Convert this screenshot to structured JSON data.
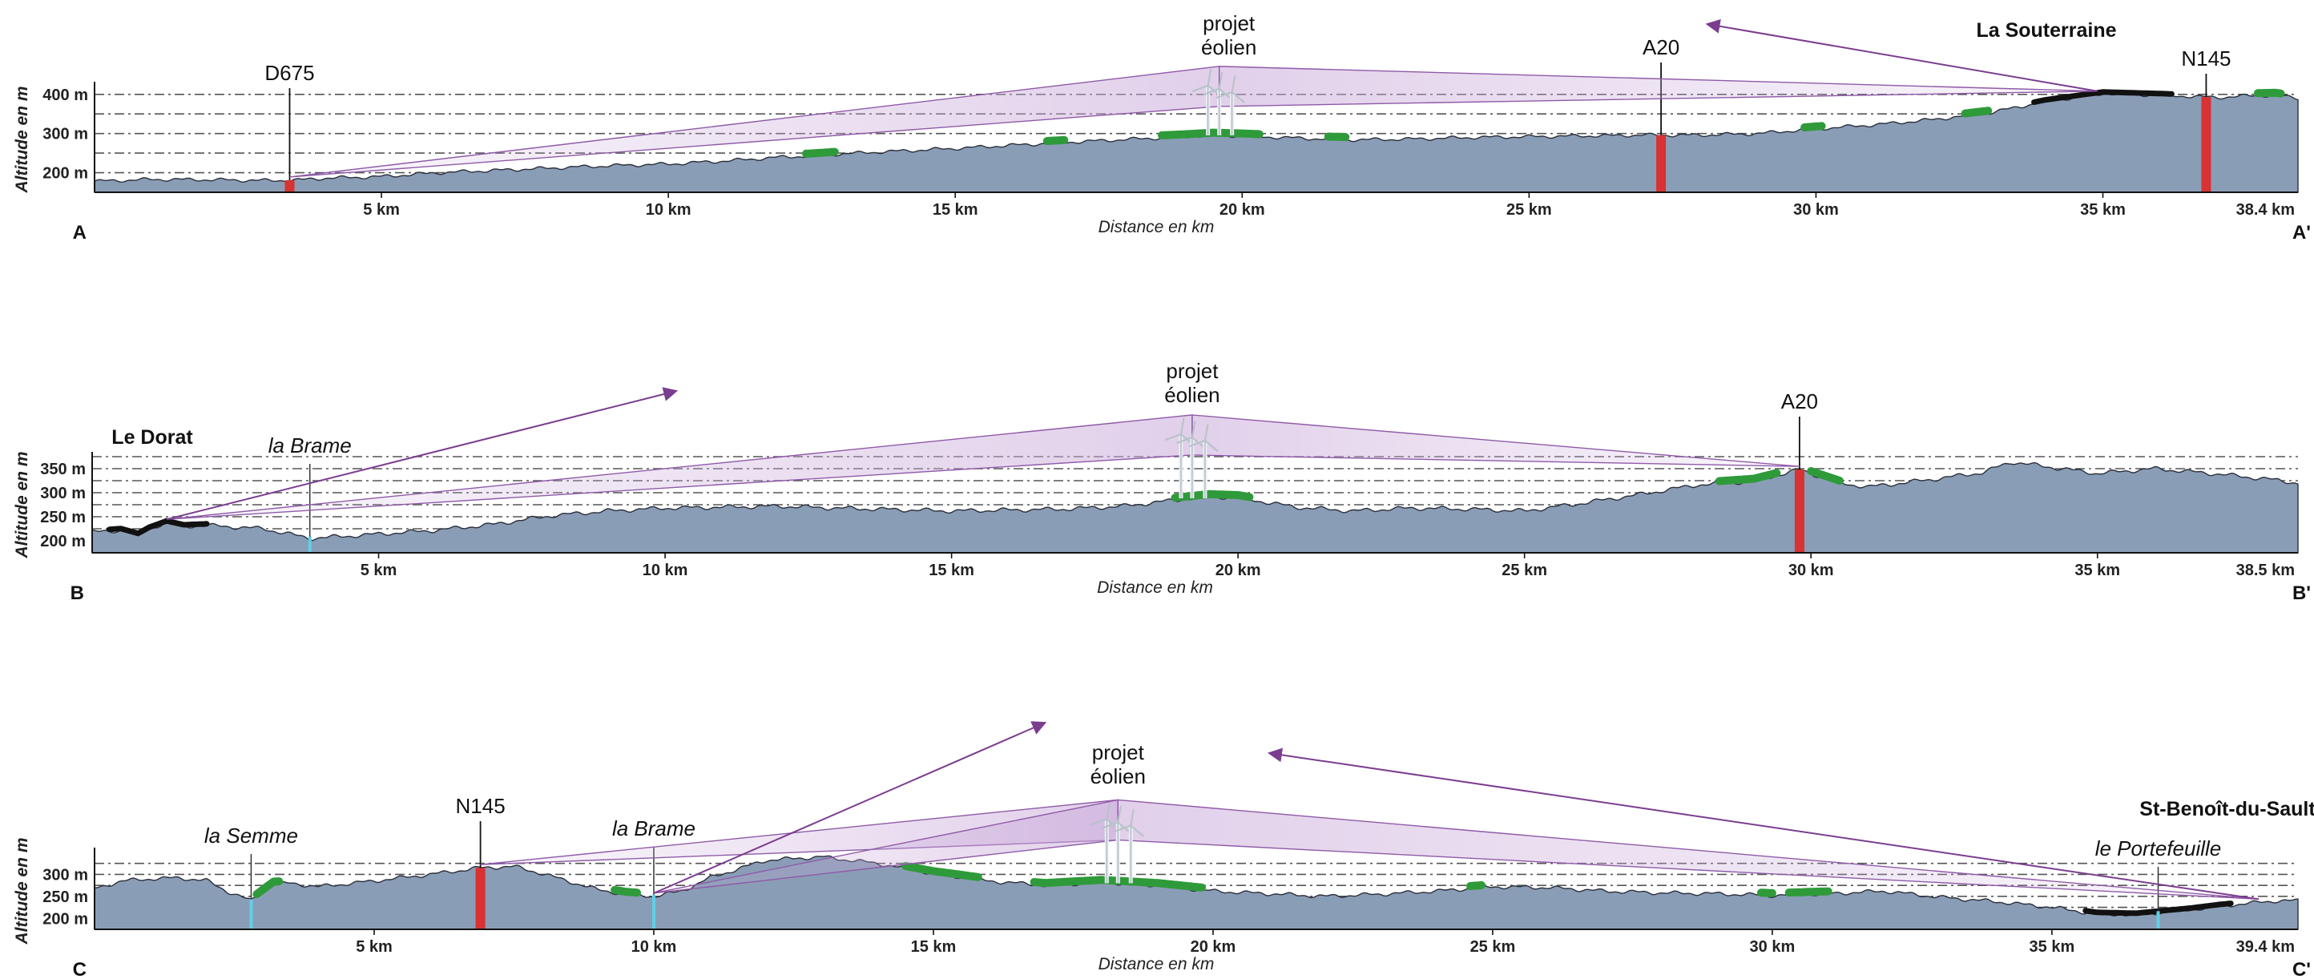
{
  "chart_data": [
    {
      "type": "area",
      "title": "",
      "xlabel": "Distance en km",
      "ylabel": "Altitude en m",
      "start_label": "A",
      "end_label": "A'",
      "x_end_label": "38.4 km",
      "xlim": [
        0,
        38.4
      ],
      "ylim": [
        150,
        420
      ],
      "xticks": [
        {
          "x": 5,
          "label": "5 km"
        },
        {
          "x": 10,
          "label": "10 km"
        },
        {
          "x": 15,
          "label": "15 km"
        },
        {
          "x": 20,
          "label": "20 km"
        },
        {
          "x": 25,
          "label": "25 km"
        },
        {
          "x": 30,
          "label": "30 km"
        },
        {
          "x": 35,
          "label": "35 km"
        }
      ],
      "yticks": [
        {
          "y": 200,
          "label": "200 m"
        },
        {
          "y": 300,
          "label": "300 m"
        },
        {
          "y": 400,
          "label": "400 m"
        }
      ],
      "gridlines": [
        200,
        250,
        300,
        350,
        400
      ],
      "elevation": {
        "x": [
          0,
          1,
          2,
          3,
          3.5,
          4,
          5,
          6,
          7,
          8,
          9,
          10,
          11,
          12,
          12.5,
          13,
          14,
          15,
          16,
          17,
          18,
          19,
          19.5,
          20,
          21,
          22,
          23,
          24,
          25,
          26,
          27,
          28,
          29,
          30,
          31,
          32,
          33,
          34,
          35,
          36,
          37,
          37.5,
          38,
          38.4
        ],
        "y": [
          178,
          183,
          182,
          180,
          181,
          186,
          190,
          200,
          206,
          212,
          218,
          222,
          230,
          240,
          243,
          248,
          255,
          262,
          270,
          278,
          285,
          292,
          296,
          294,
          288,
          284,
          286,
          290,
          292,
          294,
          296,
          296,
          300,
          312,
          322,
          335,
          352,
          382,
          402,
          398,
          392,
          396,
          398,
          390
        ]
      },
      "observer_km": 3.4,
      "turbine_km": 19.6,
      "roads": [
        {
          "name": "D675",
          "x": 3.4
        },
        {
          "name": "A20",
          "x": 27.3
        },
        {
          "name": "N145",
          "x": 36.8
        }
      ],
      "rivers": [],
      "places": [
        {
          "name": "La Souterraine",
          "x": 34.5,
          "align": "right-top"
        }
      ],
      "project_label": [
        "projet",
        "éolien"
      ],
      "forest_km": [
        [
          12.4,
          12.9
        ],
        [
          16.6,
          16.9
        ],
        [
          18.6,
          20.3
        ],
        [
          21.5,
          21.8
        ],
        [
          29.8,
          30.1
        ],
        [
          32.6,
          33.0
        ],
        [
          37.7,
          38.1
        ]
      ],
      "town_km": [
        [
          33.8,
          36.2
        ]
      ],
      "sightlines": [
        {
          "from_km": 3.4,
          "to_km": 19.6
        },
        {
          "from_km": 34.9,
          "to_km": 19.6
        }
      ],
      "arrow": {
        "from_km": 34.9,
        "to_km": 28.1
      }
    },
    {
      "type": "area",
      "title": "",
      "xlabel": "Distance en km",
      "ylabel": "Altitude en m",
      "start_label": "B",
      "end_label": "B'",
      "x_end_label": "38.5 km",
      "xlim": [
        0,
        38.5
      ],
      "ylim": [
        175,
        375
      ],
      "xticks": [
        {
          "x": 5,
          "label": "5 km"
        },
        {
          "x": 10,
          "label": "10 km"
        },
        {
          "x": 15,
          "label": "15 km"
        },
        {
          "x": 20,
          "label": "20 km"
        },
        {
          "x": 25,
          "label": "25 km"
        },
        {
          "x": 30,
          "label": "30 km"
        },
        {
          "x": 35,
          "label": "35 km"
        }
      ],
      "yticks": [
        {
          "y": 200,
          "label": "200 m"
        },
        {
          "y": 250,
          "label": "250 m"
        },
        {
          "y": 300,
          "label": "300 m"
        },
        {
          "y": 350,
          "label": "350 m"
        }
      ],
      "gridlines": [
        200,
        225,
        250,
        275,
        300,
        325,
        350,
        375
      ],
      "elevation": {
        "x": [
          0,
          0.5,
          0.8,
          1,
          1.3,
          1.6,
          2,
          3,
          3.8,
          4.5,
          5,
          6,
          7,
          8,
          9,
          10,
          11,
          12,
          13,
          14,
          15,
          16,
          17,
          18,
          19,
          19.5,
          20,
          21,
          22,
          23,
          24,
          25,
          26,
          27,
          28,
          29,
          29.8,
          30.5,
          31,
          32,
          33,
          33.5,
          34,
          35,
          36,
          37,
          38,
          38.5
        ],
        "y": [
          218,
          222,
          212,
          225,
          238,
          230,
          232,
          225,
          205,
          210,
          214,
          222,
          234,
          252,
          262,
          268,
          270,
          272,
          268,
          265,
          262,
          264,
          266,
          272,
          286,
          292,
          290,
          270,
          262,
          268,
          266,
          262,
          278,
          296,
          316,
          324,
          348,
          320,
          312,
          326,
          342,
          364,
          356,
          340,
          350,
          340,
          328,
          320
        ]
      },
      "observer_km": 1.3,
      "turbine_km": 19.2,
      "roads": [
        {
          "name": "A20",
          "x": 29.8
        }
      ],
      "rivers": [
        {
          "name": "la Brame",
          "x": 3.8
        }
      ],
      "places": [
        {
          "name": "Le Dorat",
          "x": 1.0,
          "align": "left-top"
        }
      ],
      "project_label": [
        "projet",
        "éolien"
      ],
      "forest_km": [
        [
          18.9,
          20.2
        ],
        [
          28.4,
          29.4
        ],
        [
          30.0,
          30.5
        ]
      ],
      "town_km": [
        [
          0.3,
          2.0
        ]
      ],
      "sightlines": [
        {
          "from_km": 1.3,
          "to_km": 19.2
        },
        {
          "from_km": 29.8,
          "to_km": 19.2
        }
      ],
      "arrow": {
        "from_km": 1.3,
        "to_km": 10.2
      }
    },
    {
      "type": "area",
      "title": "",
      "xlabel": "Distance en km",
      "ylabel": "Altitude en m",
      "start_label": "C",
      "end_label": "C'",
      "x_end_label": "39.4 km",
      "xlim": [
        0,
        39.4
      ],
      "ylim": [
        175,
        350
      ],
      "xticks": [
        {
          "x": 5,
          "label": "5 km"
        },
        {
          "x": 10,
          "label": "10 km"
        },
        {
          "x": 15,
          "label": "15 km"
        },
        {
          "x": 20,
          "label": "20 km"
        },
        {
          "x": 25,
          "label": "25 km"
        },
        {
          "x": 30,
          "label": "30 km"
        },
        {
          "x": 35,
          "label": "35 km"
        }
      ],
      "yticks": [
        {
          "y": 200,
          "label": "200 m"
        },
        {
          "y": 250,
          "label": "250 m"
        },
        {
          "y": 300,
          "label": "300 m"
        }
      ],
      "gridlines": [
        200,
        225,
        250,
        275,
        300,
        325
      ],
      "elevation": {
        "x": [
          0,
          0.5,
          1,
          1.5,
          2,
          2.4,
          2.8,
          3.2,
          3.5,
          4,
          5,
          6,
          6.9,
          7.5,
          8,
          9,
          9.5,
          10,
          10.5,
          11,
          12,
          13,
          14,
          15,
          16,
          17,
          18,
          19,
          20,
          21,
          22,
          23,
          24,
          25,
          26,
          27,
          28,
          29,
          30,
          31,
          32,
          33,
          34,
          35,
          35.8,
          36.5,
          37,
          37.5,
          38,
          39,
          39.4
        ],
        "y": [
          268,
          285,
          290,
          292,
          286,
          260,
          240,
          278,
          280,
          272,
          285,
          300,
          315,
          318,
          302,
          265,
          255,
          250,
          262,
          292,
          332,
          340,
          325,
          302,
          285,
          275,
          282,
          275,
          262,
          256,
          250,
          255,
          262,
          272,
          270,
          262,
          258,
          256,
          252,
          256,
          262,
          248,
          238,
          225,
          210,
          208,
          214,
          220,
          228,
          240,
          240
        ]
      },
      "observer_km": 6.9,
      "turbine_km": 18.3,
      "roads": [
        {
          "name": "N145",
          "x": 6.9
        }
      ],
      "rivers": [
        {
          "name": "la Semme",
          "x": 2.8
        },
        {
          "name": "la Brame",
          "x": 10.0
        },
        {
          "name": "le Portefeuille",
          "x": 36.9
        }
      ],
      "places": [
        {
          "name": "St-Benoît-du-Sault",
          "x": 38.7,
          "align": "right-top"
        }
      ],
      "project_label": [
        "projet",
        "éolien"
      ],
      "forest_km": [
        [
          2.9,
          3.3
        ],
        [
          9.3,
          9.7
        ],
        [
          14.5,
          15.8
        ],
        [
          16.8,
          19.8
        ],
        [
          24.6,
          24.8
        ],
        [
          29.8,
          30.0
        ],
        [
          30.3,
          31.0
        ]
      ],
      "town_km": [
        [
          35.6,
          38.2
        ]
      ],
      "sightlines": [
        {
          "from_km": 6.9,
          "to_km": 18.3
        },
        {
          "from_km": 10.0,
          "to_km": 18.3
        },
        {
          "from_km": 38.7,
          "to_km": 18.3
        }
      ],
      "arrow": {
        "from_km": 10.0,
        "to_km": 17.0
      },
      "arrow2": {
        "from_km": 38.7,
        "to_km": 21.0
      }
    }
  ]
}
